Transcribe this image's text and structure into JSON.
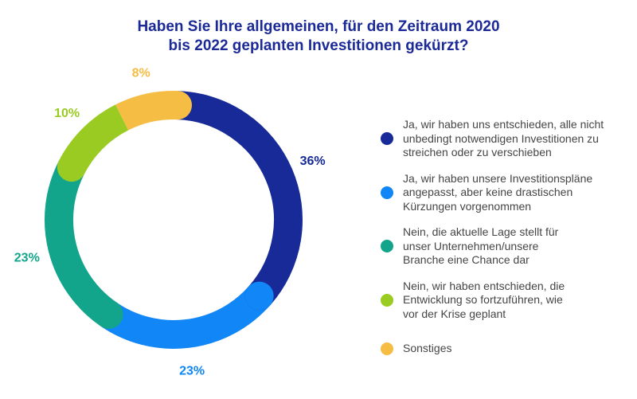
{
  "title_lines": [
    "Haben Sie Ihre allgemeinen, für den Zeitraum 2020",
    "bis 2022 geplanten Investitionen gekürzt?"
  ],
  "chart_data": {
    "type": "pie",
    "variant": "donut",
    "title": "Haben Sie Ihre allgemeinen, für den Zeitraum 2020 bis 2022 geplanten Investitionen gekürzt?",
    "categories": [
      "Ja, wir haben uns entschieden, alle nicht unbedingt notwendigen Investitionen zu streichen oder zu verschieben",
      "Ja, wir haben unsere Investitionspläne angepasst, aber keine drastischen Kürzungen vorgenommen",
      "Nein, die aktuelle Lage stellt für unser Unternehmen/unsere Branche eine Chance dar",
      "Nein, wir haben entschieden, die Entwicklung so fortzuführen, wie vor der Krise geplant",
      "Sonstiges"
    ],
    "values": [
      36,
      23,
      23,
      10,
      8
    ],
    "labels": [
      "36%",
      "23%",
      "23%",
      "10%",
      "8%"
    ],
    "colors": [
      "#172a97",
      "#1186f7",
      "#12a58b",
      "#9acb22",
      "#f6bd45"
    ],
    "legend_position": "right"
  },
  "legend": [
    {
      "lines": [
        "Ja, wir haben uns entschieden, alle nicht",
        "unbedingt notwendigen Investitionen zu",
        "streichen oder zu verschieben"
      ]
    },
    {
      "lines": [
        "Ja, wir haben unsere Investitionspläne",
        "angepasst, aber keine drastischen",
        "Kürzungen vorgenommen"
      ]
    },
    {
      "lines": [
        "Nein, die aktuelle Lage stellt für",
        "unser Unternehmen/unsere",
        "Branche eine Chance dar"
      ]
    },
    {
      "lines": [
        "Nein, wir haben entschieden, die",
        "Entwicklung so fortzuführen, wie",
        "vor der Krise geplant"
      ]
    },
    {
      "lines": [
        "Sonstiges"
      ]
    }
  ]
}
